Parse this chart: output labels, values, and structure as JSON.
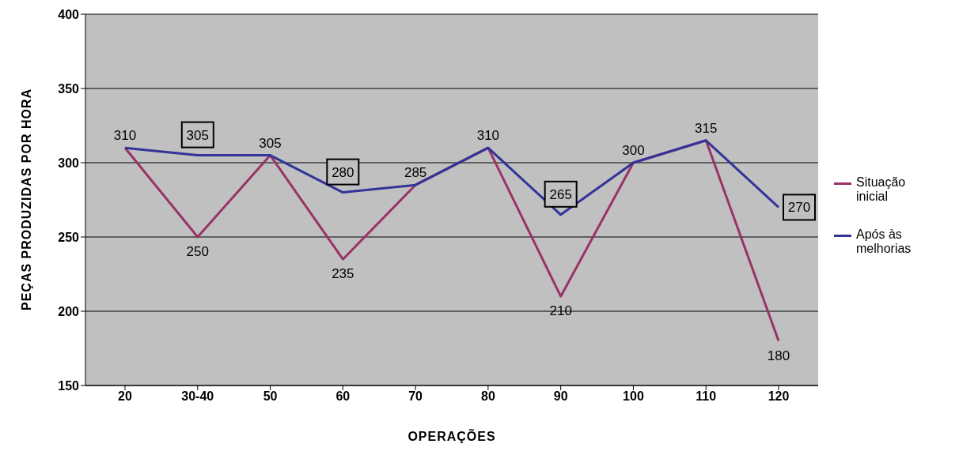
{
  "chart_data": {
    "type": "line",
    "xlabel": "OPERAÇÕES",
    "ylabel": "PEÇAS PRODUZIDAS POR HORA",
    "categories": [
      "20",
      "30-40",
      "50",
      "60",
      "70",
      "80",
      "90",
      "100",
      "110",
      "120"
    ],
    "series": [
      {
        "name": "Situação inicial",
        "color": "#993366",
        "values": [
          310,
          250,
          305,
          235,
          285,
          310,
          210,
          300,
          315,
          180
        ],
        "value_labels": [
          "310",
          "250",
          "305",
          "235",
          "285",
          "310",
          "210",
          "300",
          "315",
          "180"
        ]
      },
      {
        "name": "Após às melhorias",
        "color": "#333399",
        "values": [
          310,
          305,
          305,
          280,
          285,
          310,
          265,
          300,
          315,
          270
        ],
        "value_labels": [
          null,
          "305",
          null,
          "280",
          null,
          null,
          "265",
          null,
          null,
          "270"
        ]
      }
    ],
    "ylim": [
      150,
      400
    ],
    "yticks": [
      150,
      200,
      250,
      300,
      350,
      400
    ],
    "grid": "y",
    "legend": "right",
    "marker": "none",
    "line_style": "solid"
  }
}
